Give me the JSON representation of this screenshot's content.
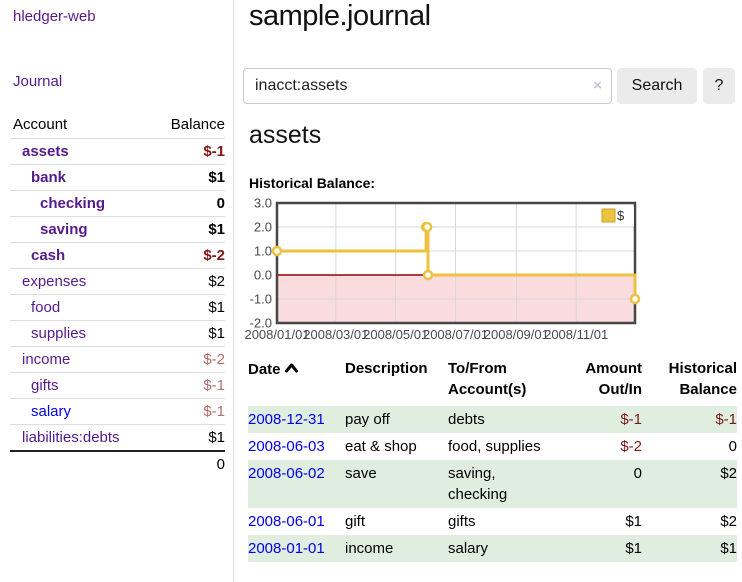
{
  "app": {
    "title": "hledger-web"
  },
  "sidebar": {
    "journal_link": "Journal",
    "table": {
      "account_header": "Account",
      "balance_header": "Balance",
      "rows": [
        {
          "account": "assets",
          "balance": "$-1"
        },
        {
          "account": "bank",
          "balance": "$1"
        },
        {
          "account": "checking",
          "balance": "0"
        },
        {
          "account": "saving",
          "balance": "$1"
        },
        {
          "account": "cash",
          "balance": "$-2"
        },
        {
          "account": "expenses",
          "balance": "$2"
        },
        {
          "account": "food",
          "balance": "$1"
        },
        {
          "account": "supplies",
          "balance": "$1"
        },
        {
          "account": "income",
          "balance": "$-2"
        },
        {
          "account": "gifts",
          "balance": "$-1"
        },
        {
          "account": "salary",
          "balance": "$-1"
        },
        {
          "account": "liabilities:debts",
          "balance": "$1"
        }
      ],
      "total": "0"
    }
  },
  "header": {
    "title": "sample.journal"
  },
  "search": {
    "value": "inacct:assets",
    "clear_label": "×",
    "button_label": "Search",
    "help_label": "?"
  },
  "account_page": {
    "title": "assets",
    "chart_label": "Historical Balance:"
  },
  "chart_data": {
    "type": "line",
    "steps": true,
    "title": "Historical Balance:",
    "series": [
      {
        "name": "$",
        "color": "#EDC240",
        "points": [
          {
            "date": "2008-01-01",
            "value": 1
          },
          {
            "date": "2008-06-01",
            "value": 2
          },
          {
            "date": "2008-06-02",
            "value": 2
          },
          {
            "date": "2008-06-03",
            "value": 0
          },
          {
            "date": "2008-12-31",
            "value": -1
          }
        ]
      }
    ],
    "x_range": [
      "2008-01-01",
      "2008-12-31"
    ],
    "ylim": [
      -2,
      3
    ],
    "y_ticks": [
      "3.0",
      "2.0",
      "1.0",
      "0.0",
      "-1.0",
      "-2.0"
    ],
    "y_tick_values": [
      3,
      2,
      1,
      0,
      -1,
      -2
    ],
    "x_ticks": [
      "2008/01/01",
      "2008/03/01",
      "2008/05/01",
      "2008/07/01",
      "2008/09/01",
      "2008/11/01"
    ],
    "x_tick_dates": [
      "2008-01-01",
      "2008-03-01",
      "2008-05-01",
      "2008-07-01",
      "2008-09-01",
      "2008-11-01"
    ],
    "grid": true,
    "legend_position": "top-right",
    "negative_region_color": "#fadcde",
    "zero_line_color": "#990000"
  },
  "register": {
    "columns": {
      "date": "Date",
      "description": "Description",
      "accounts": "To/From Account(s)",
      "amount": "Amount Out/In",
      "balance": "Historical Balance"
    },
    "rows": [
      {
        "date": "2008-12-31",
        "description": "pay off",
        "accounts": "debts",
        "amount": "$-1",
        "balance": "$-1"
      },
      {
        "date": "2008-06-03",
        "description": "eat & shop",
        "accounts": "food, supplies",
        "amount": "$-2",
        "balance": "0"
      },
      {
        "date": "2008-06-02",
        "description": "save",
        "accounts": "saving, checking",
        "amount": "0",
        "balance": "$2"
      },
      {
        "date": "2008-06-01",
        "description": "gift",
        "accounts": "gifts",
        "amount": "$1",
        "balance": "$2"
      },
      {
        "date": "2008-01-01",
        "description": "income",
        "accounts": "salary",
        "amount": "$1",
        "balance": "$1"
      }
    ]
  }
}
